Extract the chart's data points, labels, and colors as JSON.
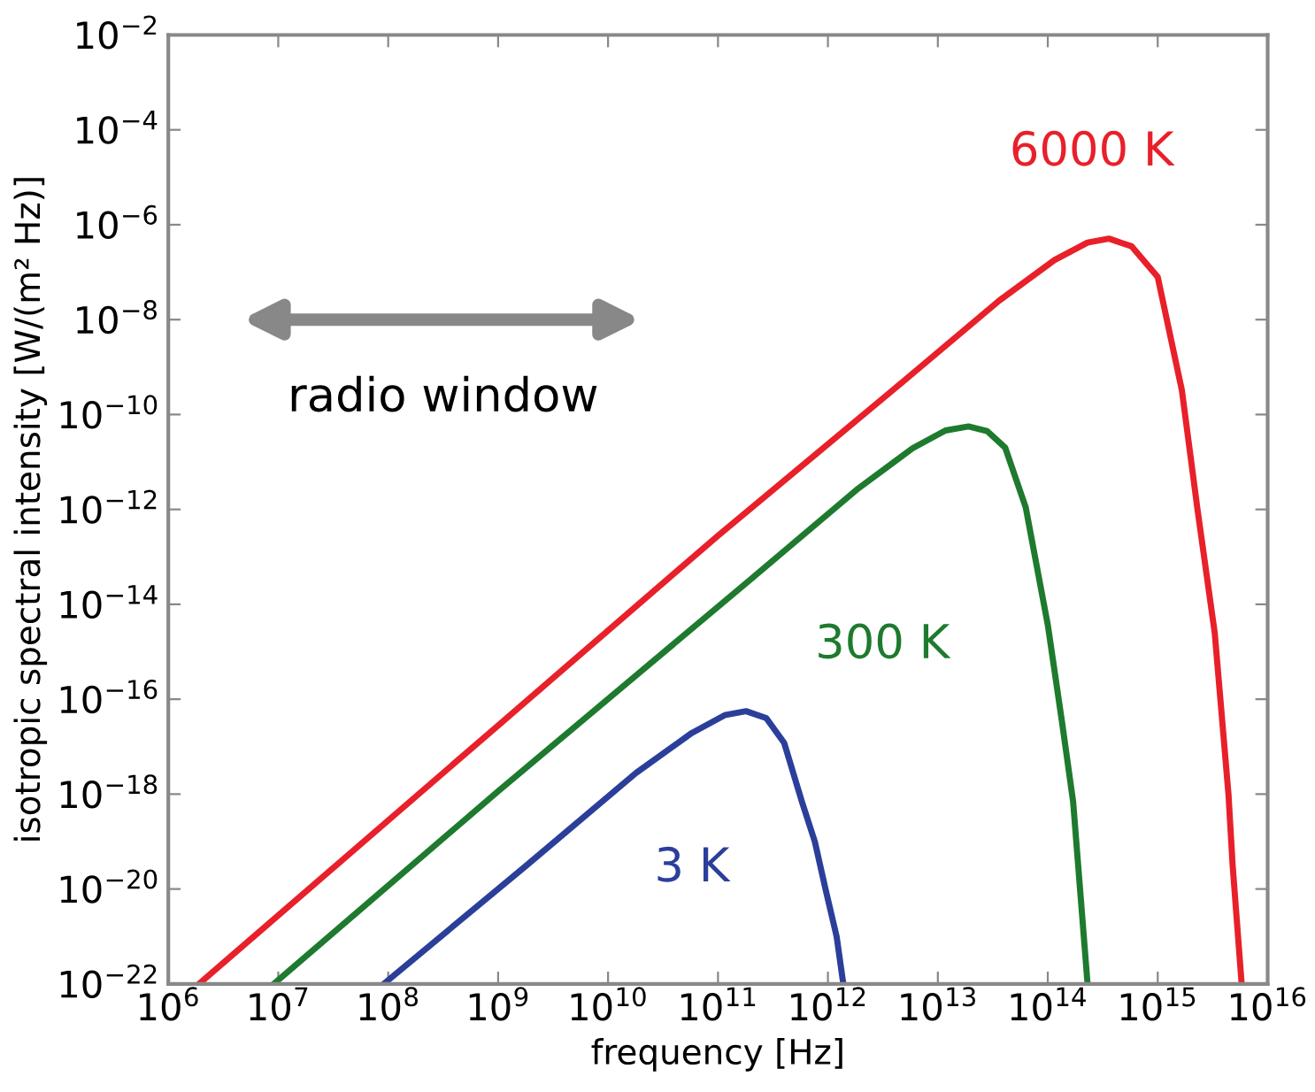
{
  "chart_data": {
    "type": "line",
    "xlabel": "frequency [Hz]",
    "ylabel": "isotropic spectral intensity [W/(m² Hz)]",
    "log": "xy",
    "grid": false,
    "legend": false,
    "xlim": [
      1000000.0,
      1e+16
    ],
    "ylim": [
      1e-22,
      0.01
    ],
    "xticks": [
      {
        "value": 1000000.0,
        "label": "10$^{6}$"
      },
      {
        "value": 10000000.0,
        "label": "10$^{7}$"
      },
      {
        "value": 100000000.0,
        "label": "10$^{8}$"
      },
      {
        "value": 1000000000.0,
        "label": "10$^{9}$"
      },
      {
        "value": 10000000000.0,
        "label": "10$^{10}$"
      },
      {
        "value": 100000000000.0,
        "label": "10$^{11}$"
      },
      {
        "value": 1000000000000.0,
        "label": "10$^{12}$"
      },
      {
        "value": 10000000000000.0,
        "label": "10$^{13}$"
      },
      {
        "value": 100000000000000.0,
        "label": "10$^{14}$"
      },
      {
        "value": 1000000000000000.0,
        "label": "10$^{15}$"
      },
      {
        "value": 1e+16,
        "label": "10$^{16}$"
      }
    ],
    "yticks": [
      {
        "value": 1e-22,
        "label": "10$^{−22}$"
      },
      {
        "value": 1e-20,
        "label": "10$^{−20}$"
      },
      {
        "value": 1e-18,
        "label": "10$^{−18}$"
      },
      {
        "value": 1e-16,
        "label": "10$^{−16}$"
      },
      {
        "value": 1e-14,
        "label": "10$^{−14}$"
      },
      {
        "value": 1e-12,
        "label": "10$^{−12}$"
      },
      {
        "value": 1e-10,
        "label": "10$^{−10}$"
      },
      {
        "value": 1e-08,
        "label": "10$^{−8}$"
      },
      {
        "value": 1e-06,
        "label": "10$^{−6}$"
      },
      {
        "value": 0.0001,
        "label": "10$^{−4}$"
      },
      {
        "value": 0.01,
        "label": "10$^{−2}$"
      }
    ],
    "annotations": [
      "radio window"
    ],
    "series": [
      {
        "name": "6000 K",
        "color": "#e8202a",
        "x": [
          1900000.0,
          1000000000.0,
          100000000000.0,
          3600000000000.0,
          36000000000000.0,
          115000000000000.0,
          230000000000000.0,
          360000000000000.0,
          580000000000000.0,
          1000000000000000.0,
          1660000000000000.0,
          2300000000000000.0,
          3300000000000000.0,
          4400000000000000.0,
          4800000000000000.0,
          5800000000000000.0
        ],
        "values": [
          1e-22,
          2.8e-17,
          2.8e-13,
          2.8e-10,
          2.5e-08,
          1.8e-07,
          4.2e-07,
          5.1e-07,
          3.5e-07,
          7.9e-08,
          3.2e-10,
          1e-12,
          2.5e-15,
          1e-18,
          3.2e-20,
          1e-22
        ]
      },
      {
        "name": "300 K",
        "color": "#1e7a2e",
        "x": [
          9100000.0,
          1000000000.0,
          190000000000.0,
          1900000000000.0,
          5900000000000.0,
          11700000000000.0,
          19000000000000.0,
          28000000000000.0,
          41000000000000.0,
          63000000000000.0,
          100000000000000.0,
          135000000000000.0,
          170000000000000.0,
          230000000000000.0
        ],
        "values": [
          1e-22,
          1.15e-18,
          3.1e-14,
          2.8e-12,
          1.95e-11,
          4.6e-11,
          5.6e-11,
          4.5e-11,
          2e-11,
          1.1e-12,
          3.7e-15,
          3.2e-17,
          6.9e-19,
          1e-22
        ]
      },
      {
        "name": "3 K",
        "color": "#2b3f9a",
        "x": [
          91000000.0,
          1800000000.0,
          18000000000.0,
          58000000000.0,
          115000000000.0,
          180000000000.0,
          275000000000.0,
          400000000000.0,
          580000000000.0,
          760000000000.0,
          950000000000.0,
          1200000000000.0,
          1380000000000.0
        ],
        "values": [
          1e-22,
          3.1e-20,
          2.8e-18,
          1.95e-17,
          4.6e-17,
          5.6e-17,
          4e-17,
          1.2e-17,
          6.9e-19,
          1e-19,
          1e-20,
          1e-21,
          1e-22
        ]
      }
    ]
  }
}
